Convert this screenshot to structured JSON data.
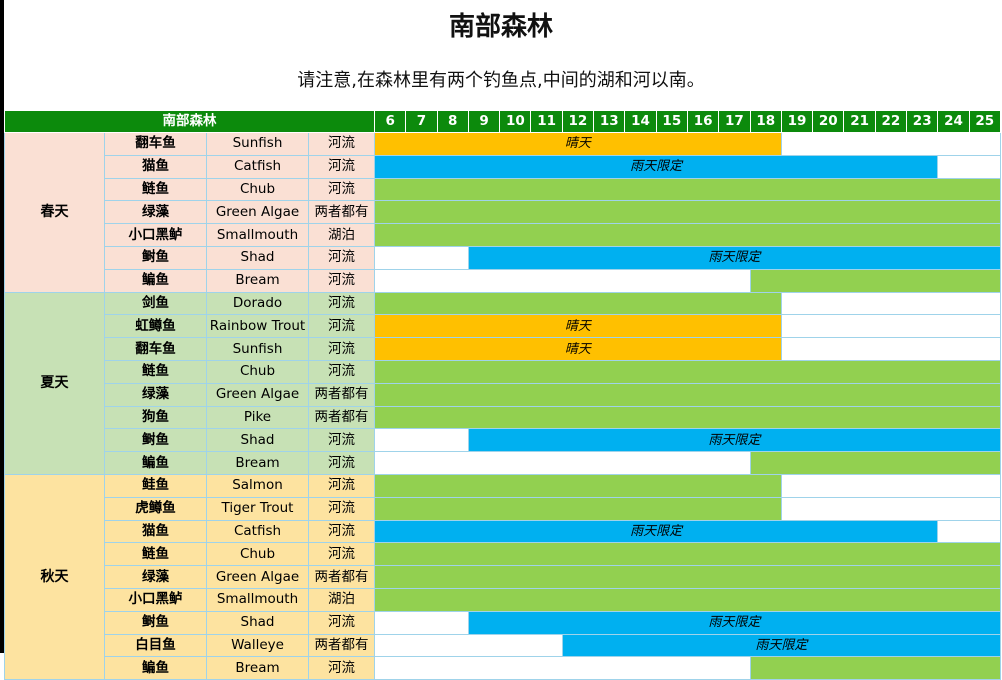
{
  "title": "南部森林",
  "subtitle": "请注意,在森林里有两个钓鱼点,中间的湖和河以南。",
  "header": {
    "area_label": "南部森林",
    "hours": [
      "6",
      "7",
      "8",
      "9",
      "10",
      "11",
      "12",
      "13",
      "14",
      "15",
      "16",
      "17",
      "18",
      "19",
      "20",
      "21",
      "22",
      "23",
      "24",
      "25"
    ]
  },
  "colors": {
    "green": "#92d050",
    "blue": "#00b0f0",
    "orange": "#ffc000",
    "header": "#0c8a0c"
  },
  "seasons": [
    {
      "name": "春天",
      "key": "spring",
      "fish": [
        {
          "cn": "翻车鱼",
          "en": "Sunfish",
          "loc": "河流",
          "segments": [
            {
              "color": "orange",
              "span": 13,
              "label": "晴天"
            },
            {
              "color": "white",
              "span": 7,
              "label": ""
            }
          ]
        },
        {
          "cn": "猫鱼",
          "en": "Catfish",
          "loc": "河流",
          "segments": [
            {
              "color": "blue",
              "span": 18,
              "label": "雨天限定"
            },
            {
              "color": "white",
              "span": 2,
              "label": ""
            }
          ]
        },
        {
          "cn": "鲢鱼",
          "en": "Chub",
          "loc": "河流",
          "segments": [
            {
              "color": "green",
              "span": 20,
              "label": ""
            }
          ]
        },
        {
          "cn": "绿藻",
          "en": "Green Algae",
          "loc": "两者都有",
          "segments": [
            {
              "color": "green",
              "span": 20,
              "label": ""
            }
          ]
        },
        {
          "cn": "小口黑鲈",
          "en": "Smallmouth",
          "loc": "湖泊",
          "segments": [
            {
              "color": "green",
              "span": 20,
              "label": ""
            }
          ]
        },
        {
          "cn": "鲥鱼",
          "en": "Shad",
          "loc": "河流",
          "segments": [
            {
              "color": "white",
              "span": 3,
              "label": ""
            },
            {
              "color": "blue",
              "span": 17,
              "label": "雨天限定"
            }
          ]
        },
        {
          "cn": "鳊鱼",
          "en": "Bream",
          "loc": "河流",
          "segments": [
            {
              "color": "white",
              "span": 12,
              "label": ""
            },
            {
              "color": "green",
              "span": 8,
              "label": ""
            }
          ]
        }
      ]
    },
    {
      "name": "夏天",
      "key": "summer",
      "fish": [
        {
          "cn": "剑鱼",
          "en": "Dorado",
          "loc": "河流",
          "segments": [
            {
              "color": "green",
              "span": 13,
              "label": ""
            },
            {
              "color": "white",
              "span": 7,
              "label": ""
            }
          ]
        },
        {
          "cn": "虹鳟鱼",
          "en": "Rainbow Trout",
          "loc": "河流",
          "segments": [
            {
              "color": "orange",
              "span": 13,
              "label": "晴天"
            },
            {
              "color": "white",
              "span": 7,
              "label": ""
            }
          ]
        },
        {
          "cn": "翻车鱼",
          "en": "Sunfish",
          "loc": "河流",
          "segments": [
            {
              "color": "orange",
              "span": 13,
              "label": "晴天"
            },
            {
              "color": "white",
              "span": 7,
              "label": ""
            }
          ]
        },
        {
          "cn": "鲢鱼",
          "en": "Chub",
          "loc": "河流",
          "segments": [
            {
              "color": "green",
              "span": 20,
              "label": ""
            }
          ]
        },
        {
          "cn": "绿藻",
          "en": "Green Algae",
          "loc": "两者都有",
          "segments": [
            {
              "color": "green",
              "span": 20,
              "label": ""
            }
          ]
        },
        {
          "cn": "狗鱼",
          "en": "Pike",
          "loc": "两者都有",
          "segments": [
            {
              "color": "green",
              "span": 20,
              "label": ""
            }
          ]
        },
        {
          "cn": "鲥鱼",
          "en": "Shad",
          "loc": "河流",
          "segments": [
            {
              "color": "white",
              "span": 3,
              "label": ""
            },
            {
              "color": "blue",
              "span": 17,
              "label": "雨天限定"
            }
          ]
        },
        {
          "cn": "鳊鱼",
          "en": "Bream",
          "loc": "河流",
          "segments": [
            {
              "color": "white",
              "span": 12,
              "label": ""
            },
            {
              "color": "green",
              "span": 8,
              "label": ""
            }
          ]
        }
      ]
    },
    {
      "name": "秋天",
      "key": "autumn",
      "fish": [
        {
          "cn": "鲑鱼",
          "en": "Salmon",
          "loc": "河流",
          "segments": [
            {
              "color": "green",
              "span": 13,
              "label": ""
            },
            {
              "color": "white",
              "span": 7,
              "label": ""
            }
          ]
        },
        {
          "cn": "虎鳟鱼",
          "en": "Tiger Trout",
          "loc": "河流",
          "segments": [
            {
              "color": "green",
              "span": 13,
              "label": ""
            },
            {
              "color": "white",
              "span": 7,
              "label": ""
            }
          ]
        },
        {
          "cn": "猫鱼",
          "en": "Catfish",
          "loc": "河流",
          "segments": [
            {
              "color": "blue",
              "span": 18,
              "label": "雨天限定"
            },
            {
              "color": "white",
              "span": 2,
              "label": ""
            }
          ]
        },
        {
          "cn": "鲢鱼",
          "en": "Chub",
          "loc": "河流",
          "segments": [
            {
              "color": "green",
              "span": 20,
              "label": ""
            }
          ]
        },
        {
          "cn": "绿藻",
          "en": "Green Algae",
          "loc": "两者都有",
          "segments": [
            {
              "color": "green",
              "span": 20,
              "label": ""
            }
          ]
        },
        {
          "cn": "小口黑鲈",
          "en": "Smallmouth",
          "loc": "湖泊",
          "segments": [
            {
              "color": "green",
              "span": 20,
              "label": ""
            }
          ]
        },
        {
          "cn": "鲥鱼",
          "en": "Shad",
          "loc": "河流",
          "segments": [
            {
              "color": "white",
              "span": 3,
              "label": ""
            },
            {
              "color": "blue",
              "span": 17,
              "label": "雨天限定"
            }
          ]
        },
        {
          "cn": "白目鱼",
          "en": "Walleye",
          "loc": "两者都有",
          "segments": [
            {
              "color": "white",
              "span": 6,
              "label": ""
            },
            {
              "color": "blue",
              "span": 14,
              "label": "雨天限定"
            }
          ]
        },
        {
          "cn": "鳊鱼",
          "en": "Bream",
          "loc": "河流",
          "segments": [
            {
              "color": "white",
              "span": 12,
              "label": ""
            },
            {
              "color": "green",
              "span": 8,
              "label": ""
            }
          ]
        }
      ]
    }
  ]
}
